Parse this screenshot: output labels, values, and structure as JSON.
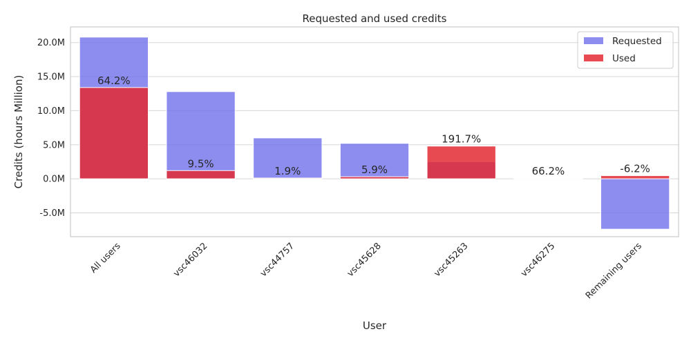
{
  "chart_data": {
    "type": "bar",
    "title": "Requested and used credits",
    "xlabel": "User",
    "ylabel": "Credits (hours Million)",
    "categories": [
      "All users",
      "vsc46032",
      "vsc44757",
      "vsc45628",
      "vsc45263",
      "vsc46275",
      "Remaining users"
    ],
    "series": [
      {
        "name": "Requested",
        "color": "#7070ec",
        "values": [
          20.8,
          12.8,
          6.0,
          5.2,
          2.5,
          0.15,
          -7.4
        ]
      },
      {
        "name": "Used",
        "color": "#e32a33",
        "values": [
          13.4,
          1.2,
          0.11,
          0.3,
          4.8,
          0.1,
          0.46
        ]
      }
    ],
    "data_labels": [
      "64.2%",
      "9.5%",
      "1.9%",
      "5.9%",
      "191.7%",
      "66.2%",
      "-6.2%"
    ],
    "yticks": [
      -5.0,
      0.0,
      5.0,
      10.0,
      15.0,
      20.0
    ],
    "ytick_labels": [
      "-5.0M",
      "0.0M",
      "5.0M",
      "10.0M",
      "15.0M",
      "20.0M"
    ],
    "ylim": [
      -8.5,
      22.3
    ],
    "grid": "horizontal",
    "legend_position": "top-right"
  }
}
